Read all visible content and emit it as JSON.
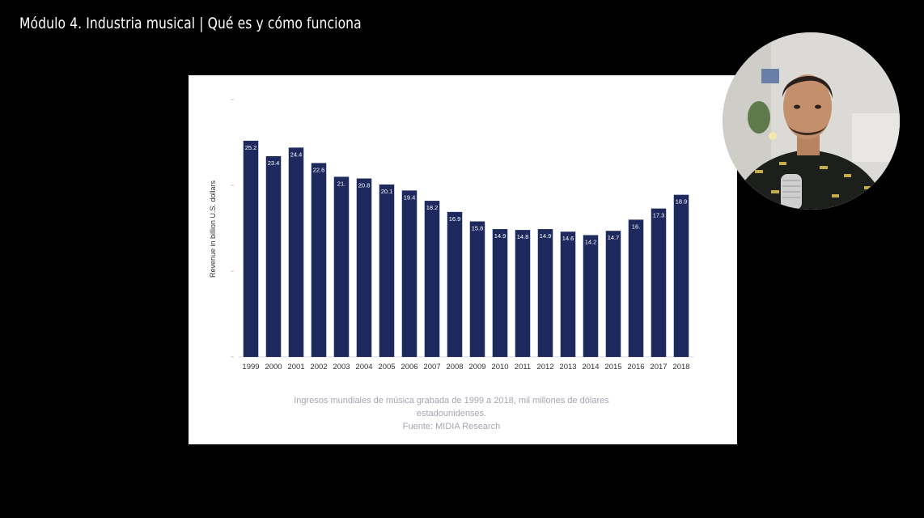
{
  "video": {
    "title": "Módulo 4. Industria musical | Qué es y cómo funciona"
  },
  "slide": {
    "caption_line1": "Ingresos mundiales de música grabada de 1999 a 2018, mil millones de dólares",
    "caption_line2": "estadounidenses.",
    "caption_line3": "Fuente: MIDIA Research"
  },
  "colors": {
    "bar": "#1e2a5e",
    "label": "#ffffff",
    "axis_text": "#333333"
  },
  "webcam": {
    "icon": "presenter-video"
  },
  "chart_data": {
    "type": "bar",
    "categories": [
      "1999",
      "2000",
      "2001",
      "2002",
      "2003",
      "2004",
      "2005",
      "2006",
      "2007",
      "2008",
      "2009",
      "2010",
      "2011",
      "2012",
      "2013",
      "2014",
      "2015",
      "2016",
      "2017",
      "2018"
    ],
    "values": [
      25.2,
      23.4,
      24.4,
      22.6,
      21.0,
      20.8,
      20.1,
      19.4,
      18.2,
      16.9,
      15.8,
      14.9,
      14.8,
      14.9,
      14.6,
      14.2,
      14.7,
      16.0,
      17.3,
      18.9
    ],
    "data_labels": [
      "25.2",
      "23.4",
      "24.4",
      "22.6",
      "21.",
      "20.8",
      "20.1",
      "19.4",
      "18.2",
      "16.9",
      "15.8",
      "14.9",
      "14.8",
      "14.9",
      "14.6",
      "14.2",
      "14.7",
      "16.",
      "17.3",
      "18.9"
    ],
    "ylabel": "Revenue in billion U.S. dollars",
    "ylim": [
      0,
      30
    ],
    "grid": false,
    "legend": "none"
  }
}
